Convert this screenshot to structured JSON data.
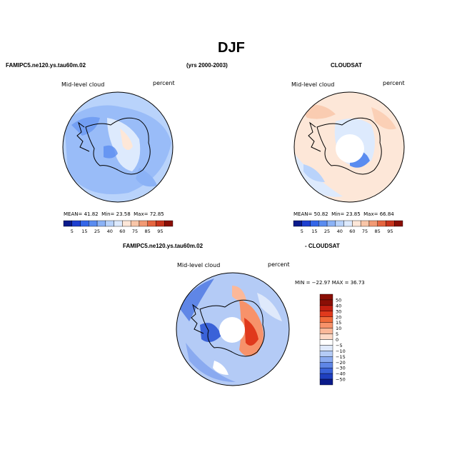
{
  "page": {
    "title": "DJF",
    "left_model": "FAMIPC5.ne120.ys.tau60m.02",
    "years": "(yrs 2000-2003)",
    "right_obs": "CLOUDSAT",
    "diff_left": "FAMIPC5.ne120.ys.tau60m.02",
    "diff_right": "- CLOUDSAT"
  },
  "chart_data": [
    {
      "type": "heatmap",
      "projection": "south-polar-stereographic",
      "title": "FAMIPC5.ne120.ys.tau60m.02",
      "variable_label": "Mid-level cloud",
      "units_label": "percent",
      "stats": {
        "mean_label": "MEAN=",
        "mean": "41.82",
        "min_label": "Min=",
        "min": "23.58",
        "max_label": "Max=",
        "max": "72.85"
      },
      "colorbar_ticks": [
        "5",
        "15",
        "25",
        "40",
        "60",
        "75",
        "85",
        "95"
      ]
    },
    {
      "type": "heatmap",
      "projection": "south-polar-stereographic",
      "title": "CLOUDSAT",
      "variable_label": "Mid-level cloud",
      "units_label": "percent",
      "stats": {
        "mean_label": "MEAN=",
        "mean": "50.82",
        "min_label": "Min=",
        "min": "23.85",
        "max_label": "Max=",
        "max": "66.84"
      },
      "colorbar_ticks": [
        "5",
        "15",
        "25",
        "40",
        "60",
        "75",
        "85",
        "95"
      ]
    },
    {
      "type": "heatmap",
      "projection": "south-polar-stereographic",
      "title": "FAMIPC5.ne120.ys.tau60m.02 - CLOUDSAT",
      "variable_label": "Mid-level cloud",
      "units_label": "percent",
      "stats_text": "MIN = −22.97 MAX =  36.73",
      "colorbar_ticks": [
        "50",
        "40",
        "30",
        "20",
        "15",
        "10",
        "5",
        "0",
        "−5",
        "−10",
        "−15",
        "−20",
        "−30",
        "−40",
        "−50"
      ]
    }
  ],
  "colors": {
    "abs_scale": [
      "#0b1a8c",
      "#1e3fd0",
      "#3466e8",
      "#5a8cf0",
      "#8bb2f6",
      "#b9d3fb",
      "#ddeafd",
      "#fde7d8",
      "#f9c6a8",
      "#f29a74",
      "#e5653f",
      "#c8351d",
      "#8a0e05"
    ],
    "diff_scale": [
      "#8a0e05",
      "#c21f10",
      "#e0391c",
      "#f06a3a",
      "#f7926a",
      "#fbb899",
      "#fdd9c6",
      "#ffffff",
      "#dfe9fb",
      "#b4cbf6",
      "#8aaaf0",
      "#5f86e6",
      "#3a62d8",
      "#1f3fbf",
      "#0a1a8a"
    ]
  }
}
